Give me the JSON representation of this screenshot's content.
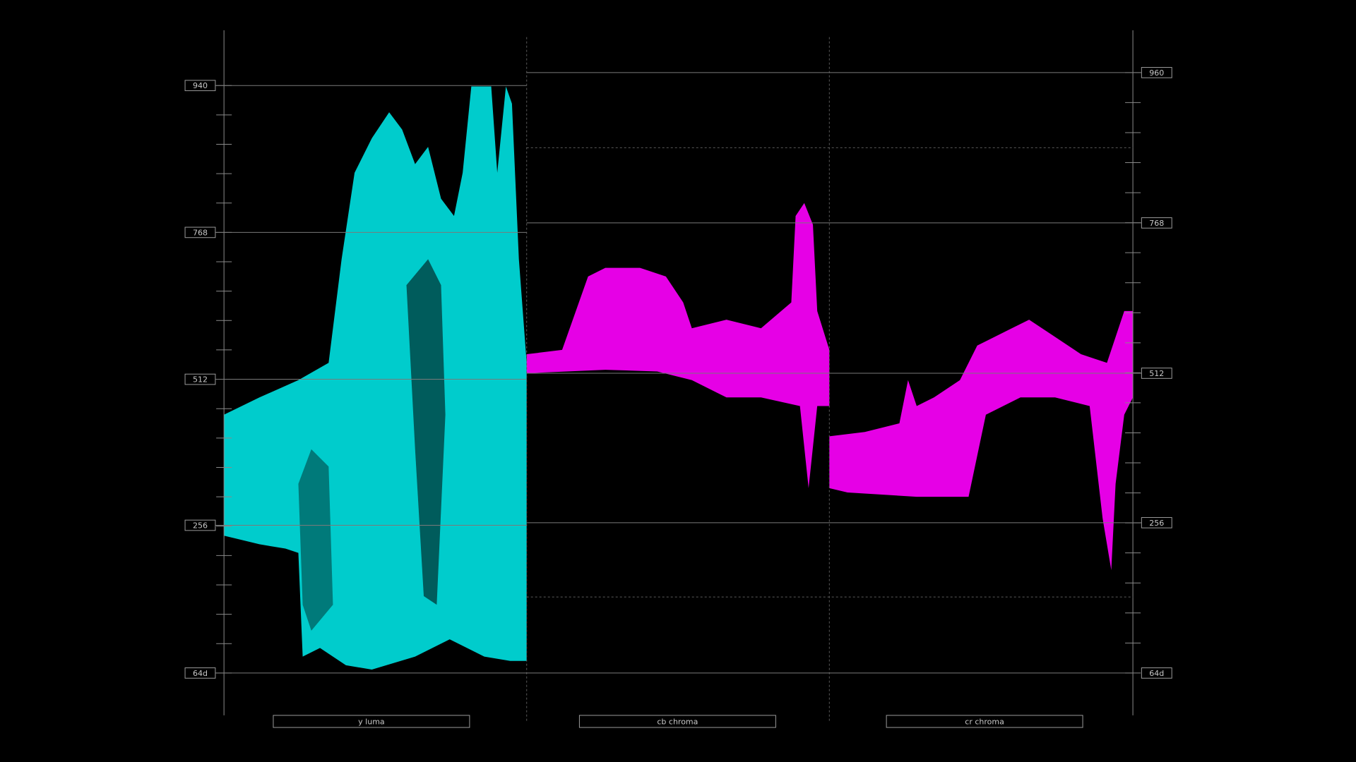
{
  "left_axis": {
    "labels": [
      "940",
      "768",
      "512",
      "256",
      "64d"
    ]
  },
  "right_axis": {
    "labels": [
      "960",
      "768",
      "512",
      "256",
      "64d"
    ]
  },
  "panels": [
    {
      "label": "y luma"
    },
    {
      "label": "cb chroma"
    },
    {
      "label": "cr chroma"
    }
  ]
}
